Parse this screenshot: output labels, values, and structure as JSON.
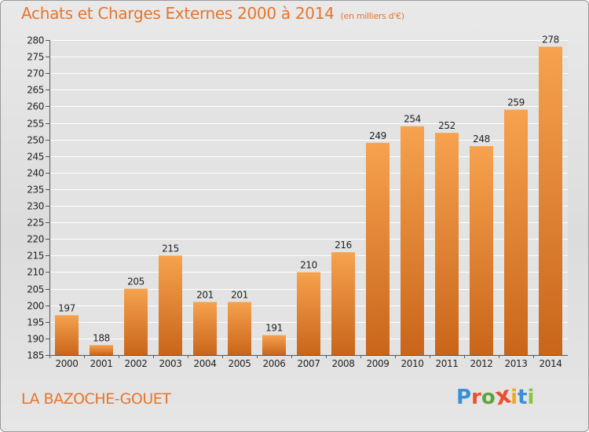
{
  "title": "Achats et Charges Externes 2000 à 2014",
  "subtitle": "(en milliers d'€)",
  "place_name": "LA BAZOCHE-GOUET",
  "brand": {
    "name": "Proxiti",
    "letters": [
      "P",
      "r",
      "o",
      "x",
      "i",
      "t",
      "i"
    ],
    "letter_colors": [
      "#3a8fd6",
      "#e94f2d",
      "#5aa63a",
      "#e94f2d",
      "#f2a81d",
      "#3a8fd6",
      "#8bc53f"
    ]
  },
  "colors": {
    "bar_top": "#f6a24e",
    "bar_bottom": "#c9651a",
    "title": "#e8742a",
    "grid": "#ffffff"
  },
  "chart_data": {
    "type": "bar",
    "categories": [
      "2000",
      "2001",
      "2002",
      "2003",
      "2004",
      "2005",
      "2006",
      "2007",
      "2008",
      "2009",
      "2010",
      "2011",
      "2012",
      "2013",
      "2014"
    ],
    "values": [
      197,
      188,
      205,
      215,
      201,
      201,
      191,
      210,
      216,
      249,
      254,
      252,
      248,
      259,
      278
    ],
    "ylim": [
      185,
      280
    ],
    "yticks": [
      185,
      190,
      195,
      200,
      205,
      210,
      215,
      220,
      225,
      230,
      235,
      240,
      245,
      250,
      255,
      260,
      265,
      270,
      275,
      280
    ],
    "grid": true,
    "legend": "none"
  }
}
